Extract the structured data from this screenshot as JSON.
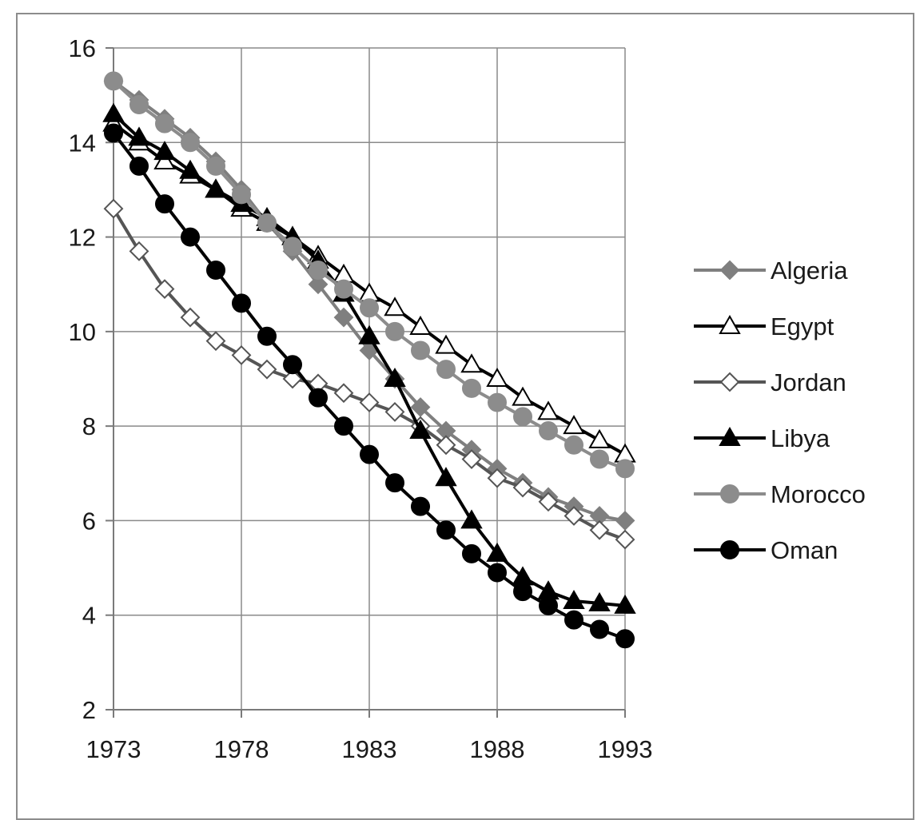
{
  "chart_data": {
    "type": "line",
    "title": "",
    "xlabel": "",
    "ylabel": "",
    "xlim": [
      1973,
      1993
    ],
    "ylim": [
      2,
      16
    ],
    "x_ticks": [
      1973,
      1978,
      1983,
      1988,
      1993
    ],
    "y_ticks": [
      2,
      4,
      6,
      8,
      10,
      12,
      14,
      16
    ],
    "grid": true,
    "legend_position": "right",
    "x": [
      1973,
      1974,
      1975,
      1976,
      1977,
      1978,
      1979,
      1980,
      1981,
      1982,
      1983,
      1984,
      1985,
      1986,
      1987,
      1988,
      1989,
      1990,
      1991,
      1992,
      1993
    ],
    "series": [
      {
        "name": "Algeria",
        "line_color": "#7f7f7f",
        "marker": "diamond",
        "marker_fill": "#7f7f7f",
        "marker_stroke": "#7f7f7f",
        "values": [
          15.3,
          14.9,
          14.5,
          14.1,
          13.6,
          13.0,
          12.3,
          11.7,
          11.0,
          10.3,
          9.6,
          9.0,
          8.4,
          7.9,
          7.5,
          7.1,
          6.8,
          6.5,
          6.3,
          6.1,
          6.0
        ]
      },
      {
        "name": "Egypt",
        "line_color": "#000000",
        "marker": "triangle",
        "marker_fill": "#ffffff",
        "marker_stroke": "#000000",
        "values": [
          14.4,
          14.0,
          13.6,
          13.3,
          13.0,
          12.6,
          12.3,
          12.0,
          11.6,
          11.2,
          10.8,
          10.5,
          10.1,
          9.7,
          9.3,
          9.0,
          8.6,
          8.3,
          8.0,
          7.7,
          7.4
        ]
      },
      {
        "name": "Jordan",
        "line_color": "#555555",
        "marker": "diamond",
        "marker_fill": "#ffffff",
        "marker_stroke": "#555555",
        "values": [
          12.6,
          11.7,
          10.9,
          10.3,
          9.8,
          9.5,
          9.2,
          9.0,
          8.9,
          8.7,
          8.5,
          8.3,
          8.0,
          7.6,
          7.3,
          6.9,
          6.7,
          6.4,
          6.1,
          5.8,
          5.6
        ]
      },
      {
        "name": "Libya",
        "line_color": "#000000",
        "marker": "triangle",
        "marker_fill": "#000000",
        "marker_stroke": "#000000",
        "values": [
          14.6,
          14.1,
          13.8,
          13.4,
          13.0,
          12.7,
          12.4,
          12.0,
          11.5,
          10.8,
          9.9,
          9.0,
          7.9,
          6.9,
          6.0,
          5.3,
          4.8,
          4.5,
          4.3,
          4.25,
          4.2
        ]
      },
      {
        "name": "Morocco",
        "line_color": "#8c8c8c",
        "marker": "circle",
        "marker_fill": "#8c8c8c",
        "marker_stroke": "#8c8c8c",
        "values": [
          15.3,
          14.8,
          14.4,
          14.0,
          13.5,
          12.9,
          12.3,
          11.8,
          11.3,
          10.9,
          10.5,
          10.0,
          9.6,
          9.2,
          8.8,
          8.5,
          8.2,
          7.9,
          7.6,
          7.3,
          7.1
        ]
      },
      {
        "name": "Oman",
        "line_color": "#000000",
        "marker": "circle",
        "marker_fill": "#000000",
        "marker_stroke": "#000000",
        "values": [
          14.2,
          13.5,
          12.7,
          12.0,
          11.3,
          10.6,
          9.9,
          9.3,
          8.6,
          8.0,
          7.4,
          6.8,
          6.3,
          5.8,
          5.3,
          4.9,
          4.5,
          4.2,
          3.9,
          3.7,
          3.5
        ]
      }
    ]
  }
}
